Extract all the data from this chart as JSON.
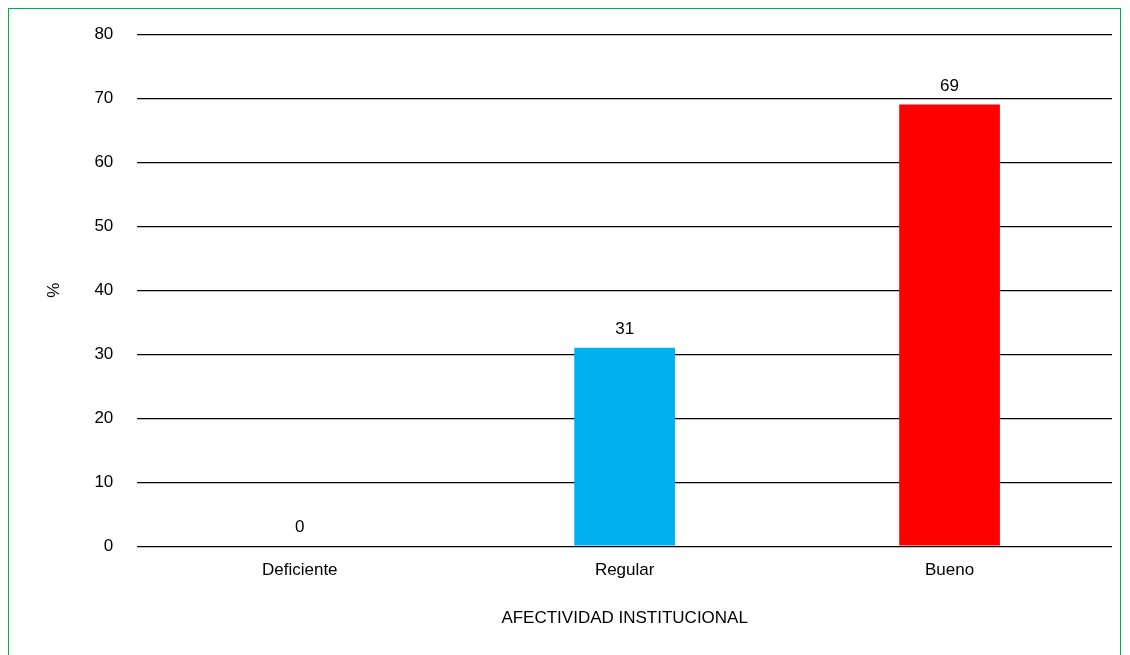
{
  "chart_data": {
    "type": "bar",
    "xlabel": "AFECTIVIDAD INSTITUCIONAL",
    "ylabel": "%",
    "categories": [
      "Deficiente",
      "Regular",
      "Bueno"
    ],
    "values": [
      0,
      31,
      69
    ],
    "colors": [
      "#00b0f0",
      "#00b0f0",
      "#ff0000"
    ],
    "ylim": [
      0,
      80
    ],
    "yticks": [
      0,
      10,
      20,
      30,
      40,
      50,
      60,
      70,
      80
    ],
    "grid": "y",
    "legend": false,
    "data_labels": true
  }
}
